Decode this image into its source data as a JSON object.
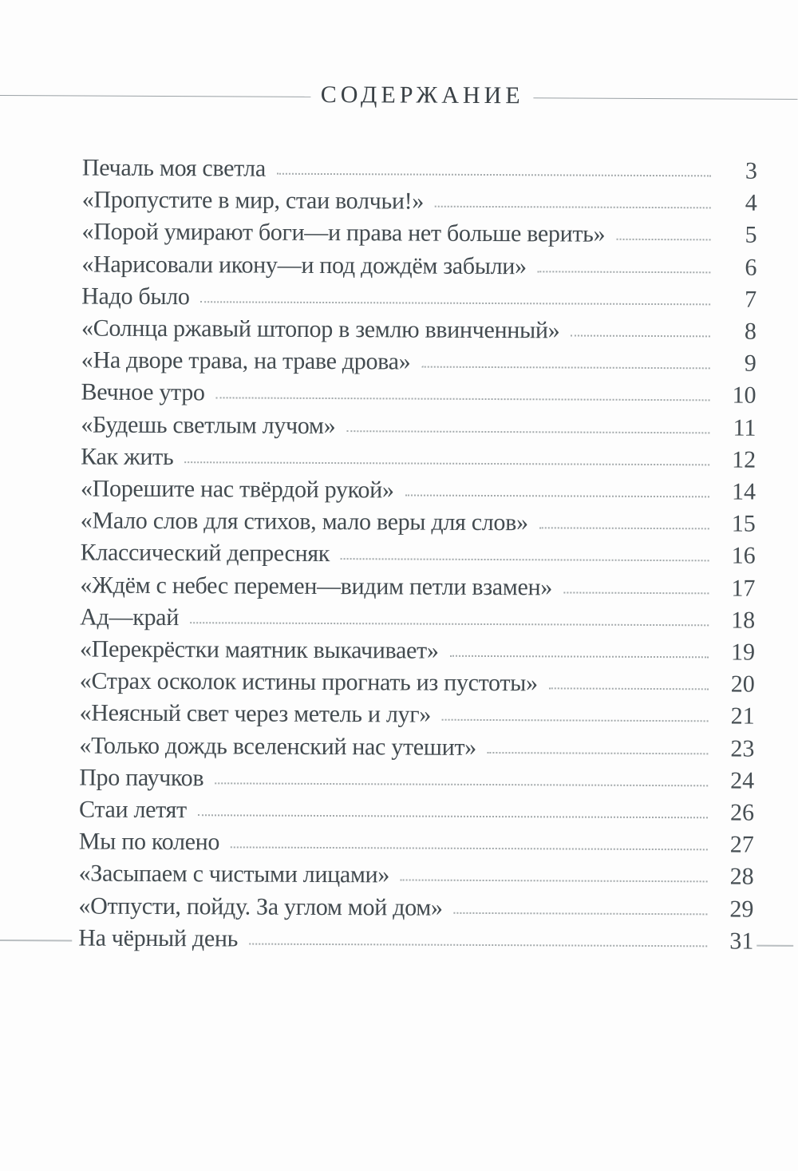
{
  "title": "СОДЕРЖАНИЕ",
  "entries": [
    {
      "label": "Печаль моя светла",
      "page": "3"
    },
    {
      "label": "«Пропустите в мир, стаи волчьи!»",
      "page": "4"
    },
    {
      "label": "«Порой умирают боги—и права нет больше верить»",
      "page": "5"
    },
    {
      "label": "«Нарисовали икону—и под дождём забыли»",
      "page": "6"
    },
    {
      "label": "Надо было",
      "page": "7"
    },
    {
      "label": "«Солнца ржавый штопор в землю ввинченный»",
      "page": "8"
    },
    {
      "label": "«На дворе трава, на траве дрова»",
      "page": "9"
    },
    {
      "label": "Вечное утро",
      "page": "10"
    },
    {
      "label": "«Будешь светлым лучом»",
      "page": "11"
    },
    {
      "label": "Как жить",
      "page": "12"
    },
    {
      "label": "«Порешите нас твёрдой рукой»",
      "page": "14"
    },
    {
      "label": "«Мало слов для стихов, мало веры для слов»",
      "page": "15"
    },
    {
      "label": "Классический депресняк",
      "page": "16"
    },
    {
      "label": "«Ждём с небес перемен—видим петли взамен»",
      "page": "17"
    },
    {
      "label": "Ад—край",
      "page": "18"
    },
    {
      "label": "«Перекрёстки маятник выкачивает»",
      "page": "19"
    },
    {
      "label": "«Страх осколок истины прогнать из пустоты»",
      "page": "20"
    },
    {
      "label": "«Неясный свет через метель и луг»",
      "page": "21"
    },
    {
      "label": "«Только дождь вселенский нас утешит»",
      "page": "23"
    },
    {
      "label": "Про паучков",
      "page": "24"
    },
    {
      "label": "Стаи летят",
      "page": "26"
    },
    {
      "label": "Мы по колено",
      "page": "27"
    },
    {
      "label": "«Засыпаем с чистыми лицами»",
      "page": "28"
    },
    {
      "label": "«Отпусти, пойду. За углом мой дом»",
      "page": "29"
    },
    {
      "label": "На чёрный день",
      "page": "31"
    }
  ],
  "colors": {
    "text": "#434b50",
    "rule": "#9aa1a5",
    "leader": "#a3a9ab",
    "edge-rule": "#b9bec1",
    "paper": "#fdfdfd"
  }
}
